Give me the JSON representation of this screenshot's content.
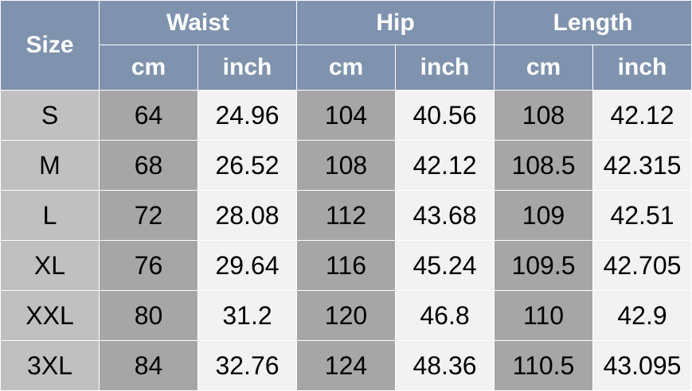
{
  "header": {
    "size": "Size",
    "groups": [
      "Waist",
      "Hip",
      "Length"
    ],
    "units": [
      "cm",
      "inch"
    ]
  },
  "rows": [
    {
      "size": "S",
      "values": [
        "64",
        "24.96",
        "104",
        "40.56",
        "108",
        "42.12"
      ]
    },
    {
      "size": "M",
      "values": [
        "68",
        "26.52",
        "108",
        "42.12",
        "108.5",
        "42.315"
      ]
    },
    {
      "size": "L",
      "values": [
        "72",
        "28.08",
        "112",
        "43.68",
        "109",
        "42.51"
      ]
    },
    {
      "size": "XL",
      "values": [
        "76",
        "29.64",
        "116",
        "45.24",
        "109.5",
        "42.705"
      ]
    },
    {
      "size": "XXL",
      "values": [
        "80",
        "31.2",
        "120",
        "46.8",
        "110",
        "42.9"
      ]
    },
    {
      "size": "3XL",
      "values": [
        "84",
        "32.76",
        "124",
        "48.36",
        "110.5",
        "43.095"
      ]
    }
  ],
  "colors": {
    "header": "#7f93ae",
    "size_column": "#c0c0c0",
    "cm_column": "#a6a6a6",
    "inch_column": "#f2f2f2"
  }
}
